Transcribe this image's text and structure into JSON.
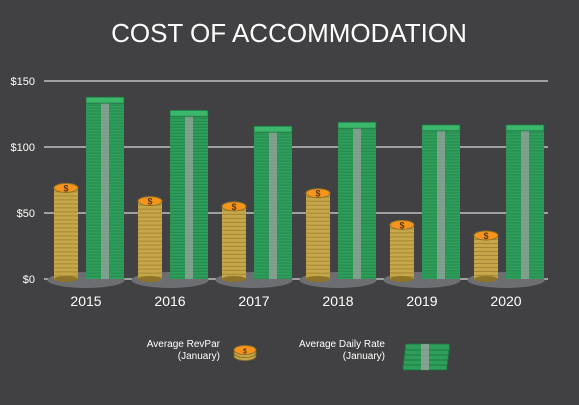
{
  "chart_data": {
    "type": "bar",
    "title": "COST OF ACCOMMODATION",
    "categories": [
      "2015",
      "2016",
      "2017",
      "2018",
      "2019",
      "2020"
    ],
    "series": [
      {
        "name": "Average RevPar\n(January)",
        "values": [
          69,
          59,
          55,
          65,
          41,
          33
        ],
        "marker": "coin-stack"
      },
      {
        "name": "Average Daily Rate\n(January)",
        "values": [
          134,
          124,
          112,
          115,
          113,
          113
        ],
        "marker": "cash-stack"
      }
    ],
    "y_ticks": [
      "$0",
      "$50",
      "$100",
      "$150"
    ],
    "y_tick_values": [
      0,
      50,
      100,
      150
    ],
    "ylim": [
      0,
      150
    ],
    "grid": true,
    "legend_position": "bottom",
    "colors": {
      "background": "#414042",
      "text": "#ffffff",
      "grid": "#ffffff",
      "coin": "#c7a64a",
      "coin_dark": "#8e7428",
      "coin_top": "#f7941d",
      "cash": "#2e9e5b",
      "cash_dark": "#1d6f3e",
      "cash_band": "#9aa39c",
      "base": "#6d6e71"
    }
  }
}
